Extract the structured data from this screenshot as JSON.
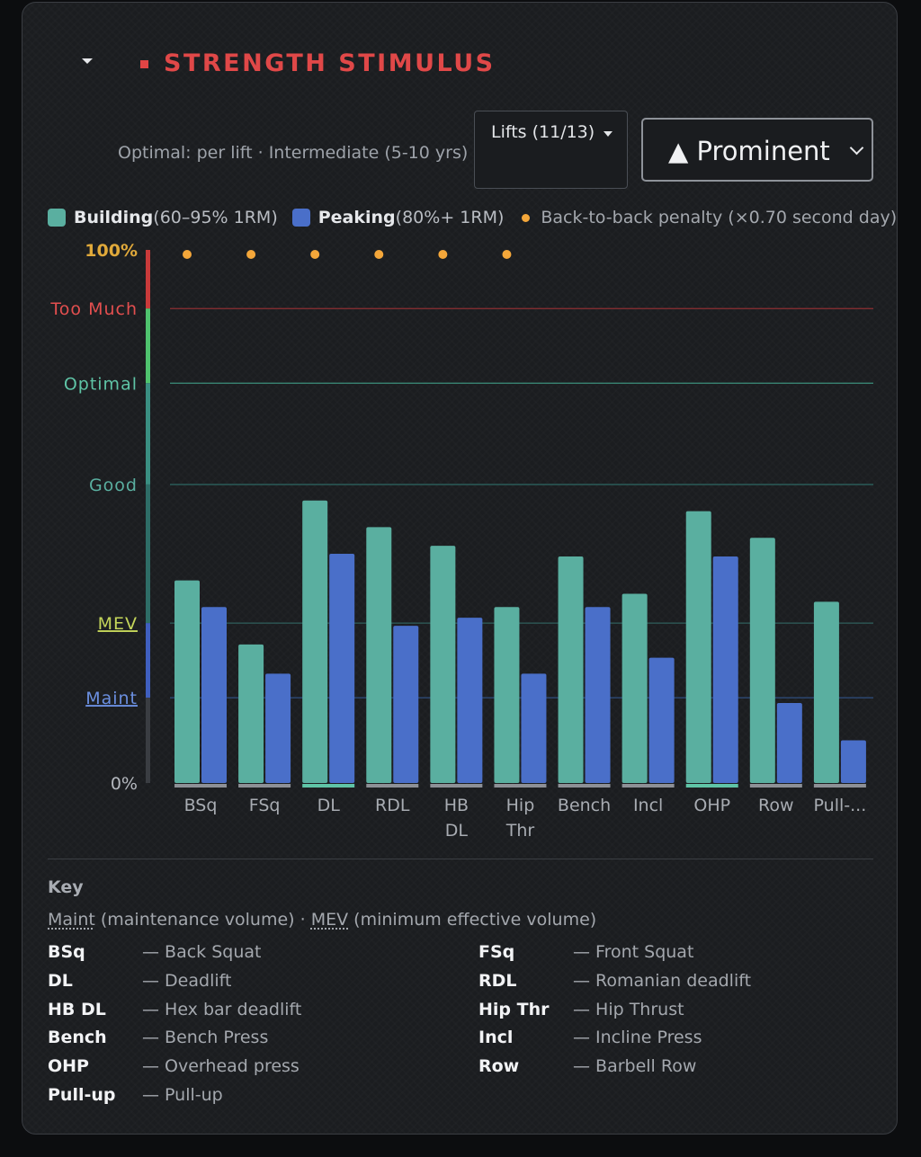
{
  "panel": {
    "title": "STRENGTH STIMULUS",
    "subtitle": "Optimal: per lift · Intermediate (5-10 yrs)",
    "lifts_button": "Lifts (11/13)",
    "display_select": "▲ Prominent"
  },
  "legend": [
    {
      "bold": "Building",
      "rest": "(60–95% 1RM)",
      "color": "#5aafa0"
    },
    {
      "bold": "Peaking",
      "rest": "(80%+ 1RM)",
      "color": "#4a6fc9"
    },
    {
      "bold": "",
      "rest": "Back-to-back penalty (×0.70 second day)",
      "color": "#f4a73a"
    }
  ],
  "chart_data": {
    "type": "bar",
    "categories": [
      "BSq",
      "FSq",
      "DL",
      "RDL",
      "HB DL",
      "Hip Thr",
      "Bench",
      "Incl",
      "OHP",
      "Row",
      "Pull-..."
    ],
    "series": [
      {
        "name": "Building",
        "values": [
          38,
          26,
          53,
          48,
          44.5,
          33,
          42.5,
          35.5,
          51,
          46,
          34
        ],
        "color": "#5aafa0"
      },
      {
        "name": "Peaking",
        "values": [
          33,
          20.5,
          43,
          29.5,
          31,
          20.5,
          33,
          23.5,
          42.5,
          15,
          8
        ],
        "color": "#4a6fc9"
      }
    ],
    "back_to_back_penalty": [
      true,
      true,
      true,
      true,
      true,
      true,
      false,
      false,
      false,
      false,
      false
    ],
    "y_axis_labels": {
      "top": "100%",
      "bottom": "0%"
    },
    "zones": [
      {
        "label": "Too Much",
        "value": 89,
        "color": "#e34f4f"
      },
      {
        "label": "Optimal",
        "value": 75,
        "color": "#5fc4a6"
      },
      {
        "label": "Good",
        "value": 56,
        "color": "#5aafa0"
      },
      {
        "label": "MEV",
        "value": 30,
        "color": "#c5d65a"
      },
      {
        "label": "Maint",
        "value": 16,
        "color": "#6b8fe0"
      }
    ],
    "ylim": [
      0,
      100
    ],
    "xlabel": "",
    "ylabel": ""
  },
  "key": {
    "title": "Key",
    "maint": "Maint",
    "maint_desc": "(maintenance volume) ·",
    "mev": "MEV",
    "mev_desc": "(minimum effective volume)",
    "abbreviations": [
      {
        "code": "BSq",
        "desc": "— Back Squat"
      },
      {
        "code": "FSq",
        "desc": "— Front Squat"
      },
      {
        "code": "DL",
        "desc": "— Deadlift"
      },
      {
        "code": "RDL",
        "desc": "— Romanian deadlift"
      },
      {
        "code": "HB DL",
        "desc": "— Hex bar deadlift"
      },
      {
        "code": "Hip Thr",
        "desc": "— Hip Thrust"
      },
      {
        "code": "Bench",
        "desc": "— Bench Press"
      },
      {
        "code": "Incl",
        "desc": "— Incline Press"
      },
      {
        "code": "OHP",
        "desc": "— Overhead press"
      },
      {
        "code": "Row",
        "desc": "— Barbell Row"
      },
      {
        "code": "Pull-up",
        "desc": "— Pull-up"
      }
    ]
  }
}
